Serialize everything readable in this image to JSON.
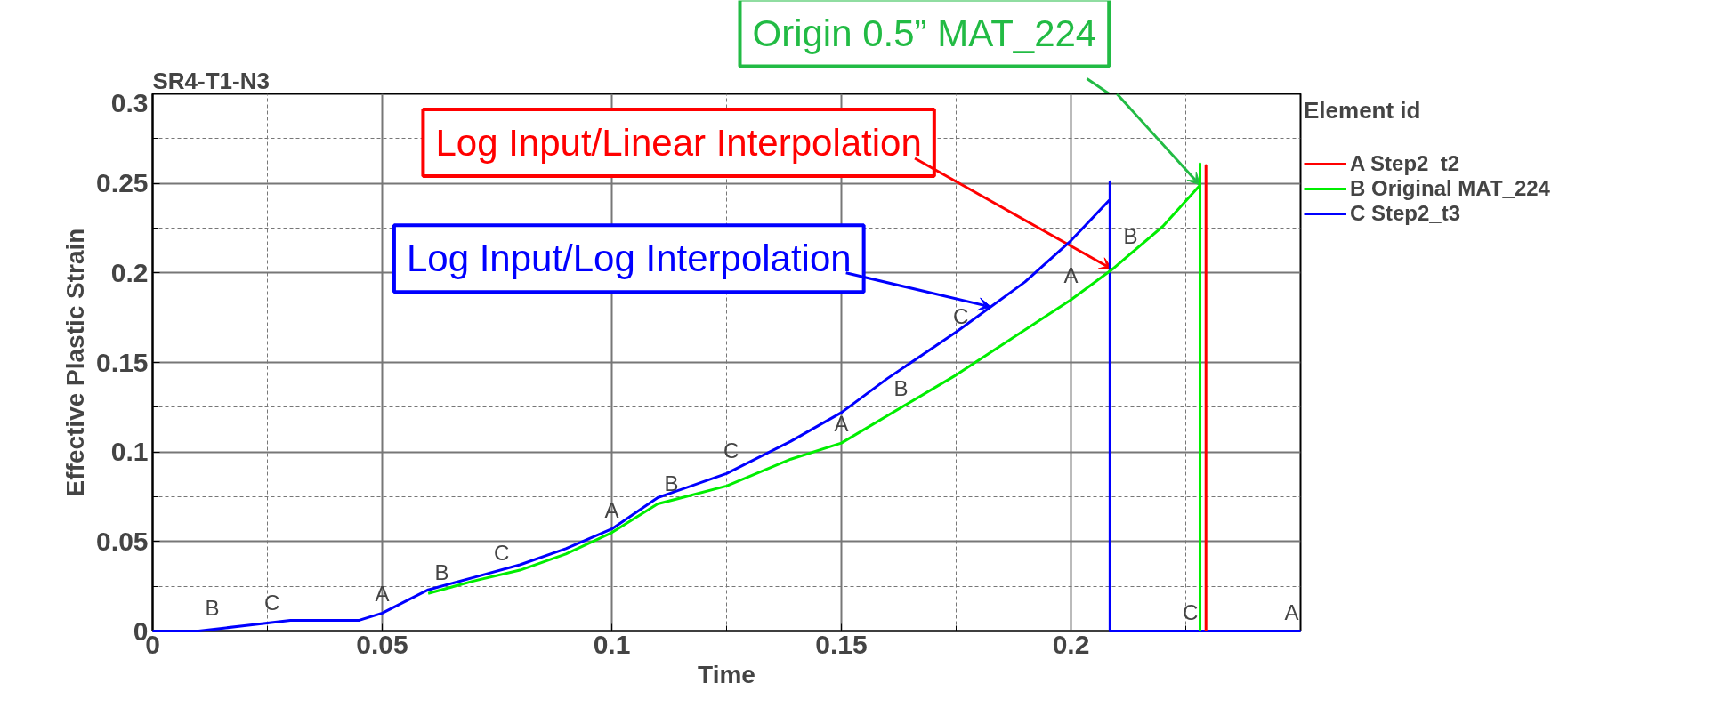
{
  "chart_data": {
    "type": "line",
    "title": "SR4-T1-N3",
    "xlabel": "Time",
    "ylabel": "Effective Plastic Strain",
    "legend_title": "Element id",
    "xlim": [
      0,
      0.25
    ],
    "ylim": [
      0,
      0.3
    ],
    "xticks": [
      0,
      0.05,
      0.1,
      0.15,
      0.2
    ],
    "yticks": [
      0,
      0.05,
      0.1,
      0.15,
      0.2,
      0.25,
      0.3
    ],
    "grid": true,
    "legend": "right",
    "marker": "none",
    "line_style": "solid",
    "series": [
      {
        "name": "A Step2_t2",
        "color": "#ff0000",
        "x": [
          0.2294,
          0.2294,
          0.2294
        ],
        "values": [
          0.249,
          0.26,
          0
        ]
      },
      {
        "name": "B Original MAT_224",
        "color": "#00ee00",
        "x": [
          0.06,
          0.07,
          0.08,
          0.09,
          0.1,
          0.11,
          0.125,
          0.139,
          0.15,
          0.175,
          0.2,
          0.209,
          0.22,
          0.2281,
          0.2281,
          0.2281
        ],
        "values": [
          0.021,
          0.028,
          0.034,
          0.043,
          0.055,
          0.071,
          0.081,
          0.096,
          0.105,
          0.143,
          0.185,
          0.202,
          0.226,
          0.249,
          0.261,
          0
        ]
      },
      {
        "name": "C Step2_t3",
        "color": "#0000ff",
        "x": [
          0,
          0.01,
          0.02,
          0.03,
          0.045,
          0.05,
          0.06,
          0.07,
          0.08,
          0.09,
          0.1,
          0.11,
          0.125,
          0.139,
          0.15,
          0.16,
          0.175,
          0.19,
          0.2,
          0.2085,
          0.2085,
          0.2085,
          0.25
        ],
        "values": [
          0,
          0,
          0.003,
          0.006,
          0.006,
          0.01,
          0.023,
          0.03,
          0.037,
          0.046,
          0.057,
          0.0745,
          0.088,
          0.106,
          0.122,
          0.141,
          0.167,
          0.195,
          0.218,
          0.241,
          0.251,
          0,
          0
        ]
      }
    ],
    "annotations": [
      {
        "text": "Log Input/Linear Interpolation",
        "x": 0.209,
        "y": 0.202
      },
      {
        "text": "Log Input/Log Interpolation",
        "x": 0.1826,
        "y": 0.181
      },
      {
        "text": "Origin 0.5” MAT_224",
        "x": 0.2281,
        "y": 0.249
      },
      {
        "text": "A",
        "x": 0.05,
        "y": 0.01
      },
      {
        "text": "A",
        "x": 0.1,
        "y": 0.057
      },
      {
        "text": "A",
        "x": 0.15,
        "y": 0.105
      },
      {
        "text": "A",
        "x": 0.2,
        "y": 0.188
      },
      {
        "text": "A",
        "x": 0.25,
        "y": 0
      },
      {
        "text": "B",
        "x": 0.013,
        "y": 0.002
      },
      {
        "text": "B",
        "x": 0.063,
        "y": 0.022
      },
      {
        "text": "B",
        "x": 0.113,
        "y": 0.072
      },
      {
        "text": "B",
        "x": 0.163,
        "y": 0.125
      },
      {
        "text": "B",
        "x": 0.213,
        "y": 0.21
      },
      {
        "text": "C",
        "x": 0.026,
        "y": 0.005
      },
      {
        "text": "C",
        "x": 0.076,
        "y": 0.033
      },
      {
        "text": "C",
        "x": 0.126,
        "y": 0.09
      },
      {
        "text": "C",
        "x": 0.176,
        "y": 0.165
      },
      {
        "text": "C",
        "x": 0.226,
        "y": 0
      }
    ]
  }
}
